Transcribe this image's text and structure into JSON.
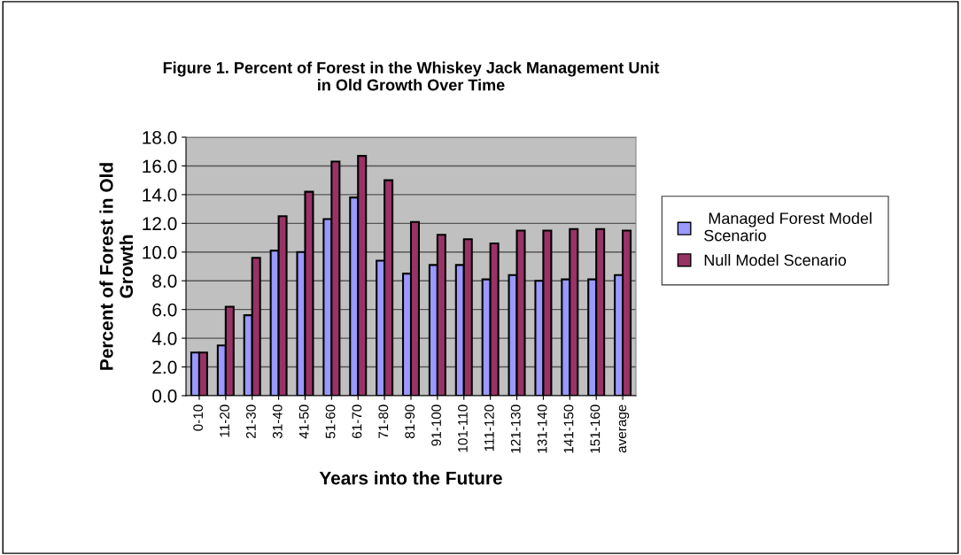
{
  "chart_data": {
    "type": "bar",
    "title": "Figure 1. Percent of Forest in the Whiskey Jack Management Unit\nin Old Growth Over Time",
    "xlabel": "Years into the Future",
    "ylabel": "Percent of Forest in Old\nGrowth",
    "categories": [
      "0-10",
      "11-20",
      "21-30",
      "31-40",
      "41-50",
      "51-60",
      "61-70",
      "71-80",
      "81-90",
      "91-100",
      "101-110",
      "111-120",
      "121-130",
      "131-140",
      "141-150",
      "151-160",
      "average"
    ],
    "series": [
      {
        "name": " Managed Forest Model\nScenario",
        "color": "#9999ff",
        "values": [
          3.0,
          3.5,
          5.6,
          10.1,
          10.0,
          12.3,
          13.8,
          9.4,
          8.5,
          9.1,
          9.1,
          8.1,
          8.4,
          8.0,
          8.1,
          8.1,
          8.4
        ]
      },
      {
        "name": "Null Model Scenario",
        "color": "#993366",
        "values": [
          3.0,
          6.2,
          9.6,
          12.5,
          14.2,
          16.3,
          16.7,
          15.0,
          12.1,
          11.2,
          10.9,
          10.6,
          11.5,
          11.5,
          11.6,
          11.6,
          11.5
        ]
      }
    ],
    "ylim": [
      0,
      18
    ],
    "yticks": [
      {
        "value": 0,
        "label": "0.0"
      },
      {
        "value": 2,
        "label": "2.0"
      },
      {
        "value": 4,
        "label": "4.0"
      },
      {
        "value": 6,
        "label": "6.0"
      },
      {
        "value": 8,
        "label": "8.0"
      },
      {
        "value": 10,
        "label": "10.0"
      },
      {
        "value": 12,
        "label": "12.0"
      },
      {
        "value": 14,
        "label": "14.0"
      },
      {
        "value": 16,
        "label": "16.0"
      },
      {
        "value": 18,
        "label": "18.0"
      }
    ],
    "grid": "y",
    "legend": "right"
  }
}
